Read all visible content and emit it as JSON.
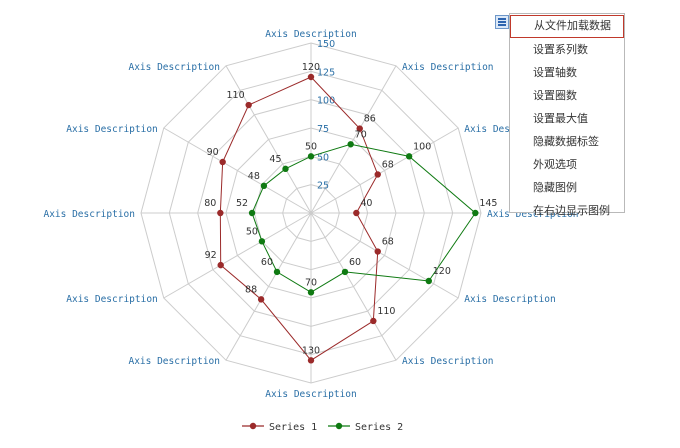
{
  "chart_data": {
    "type": "radar",
    "axes": [
      "Axis Description",
      "Axis Description",
      "Axis Description",
      "Axis Description",
      "Axis Description",
      "Axis Description",
      "Axis Description",
      "Axis Description",
      "Axis Description",
      "Axis Description",
      "Axis Description",
      "Axis Description"
    ],
    "rlim": [
      0,
      150
    ],
    "ticks": [
      25,
      50,
      75,
      100,
      125,
      150
    ],
    "grid": true,
    "legend_position": "bottom",
    "series": [
      {
        "name": "Series 1",
        "color": "#9b2a2a",
        "values": [
          120,
          86,
          68,
          40,
          68,
          110,
          130,
          88,
          92,
          80,
          90,
          110
        ]
      },
      {
        "name": "Series 2",
        "color": "#0f7a12",
        "values": [
          50,
          70,
          100,
          145,
          120,
          60,
          70,
          60,
          50,
          52,
          48,
          45
        ]
      }
    ]
  },
  "menu": {
    "button_icon": "menu-icon",
    "items": [
      "从文件加载数据",
      "设置系列数",
      "设置轴数",
      "设置圈数",
      "设置最大值",
      "隐藏数据标签",
      "外观选项",
      "隐藏图例",
      "在右边显示图例"
    ],
    "highlighted_index": 0,
    "highlight_color": "#c0392b"
  }
}
